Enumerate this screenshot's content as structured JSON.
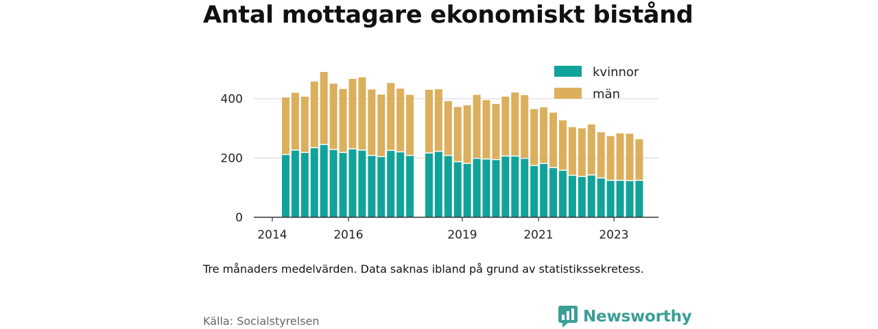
{
  "title": "Antal mottagare ekonomiskt bistånd",
  "note": "Tre månaders medelvärden. Data saknas ibland på grund av statistikssekretess.",
  "source": "Källa: Socialstyrelsen",
  "brand": {
    "name": "Newsworthy",
    "icon": "bar-chart-speech-bubble-icon",
    "color": "#3a9e98"
  },
  "chart_data": {
    "type": "bar",
    "stacked": true,
    "title": "Antal mottagare ekonomiskt bistånd",
    "xlabel": "",
    "ylabel": "",
    "ylim": [
      0,
      500
    ],
    "y_ticks": [
      0,
      200,
      400
    ],
    "x_tick_labels": [
      "2014",
      "2016",
      "2019",
      "2021",
      "2023"
    ],
    "grid": true,
    "legend_position": "top-right",
    "categories": [
      "2014-Q3",
      "2014-Q4",
      "2015-Q1",
      "2015-Q2",
      "2015-Q3",
      "2015-Q4",
      "2016-Q1",
      "2016-Q2",
      "2016-Q3",
      "2016-Q4",
      "2017-Q1",
      "2017-Q2",
      "2017-Q3",
      "2017-Q4",
      "2018-Q1",
      "2018-Q2",
      "2018-Q4",
      "2019-Q1",
      "2019-Q2",
      "2019-Q3",
      "2019-Q4",
      "2020-Q1",
      "2020-Q2",
      "2020-Q3",
      "2020-Q4",
      "2021-Q1",
      "2021-Q2",
      "2021-Q3",
      "2021-Q4",
      "2022-Q1",
      "2022-Q2",
      "2022-Q3",
      "2022-Q4",
      "2023-Q1",
      "2023-Q2",
      "2023-Q3",
      "2023-Q4",
      "2024-Q1"
    ],
    "series": [
      {
        "name": "kvinnor",
        "color": "#11a39a",
        "values": [
          210,
          225,
          217,
          233,
          244,
          227,
          217,
          229,
          225,
          207,
          203,
          224,
          219,
          207,
          null,
          215,
          221,
          207,
          186,
          180,
          197,
          195,
          193,
          205,
          205,
          197,
          173,
          180,
          166,
          157,
          140,
          136,
          141,
          131,
          123,
          123,
          122,
          123
        ]
      },
      {
        "name": "män",
        "color": "#dbaf5c",
        "values": [
          194,
          195,
          190,
          225,
          246,
          224,
          216,
          238,
          247,
          224,
          211,
          229,
          215,
          206,
          null,
          215,
          211,
          185,
          186,
          198,
          216,
          200,
          189,
          202,
          216,
          215,
          192,
          191,
          187,
          170,
          164,
          164,
          172,
          156,
          151,
          160,
          160,
          140
        ]
      }
    ]
  }
}
